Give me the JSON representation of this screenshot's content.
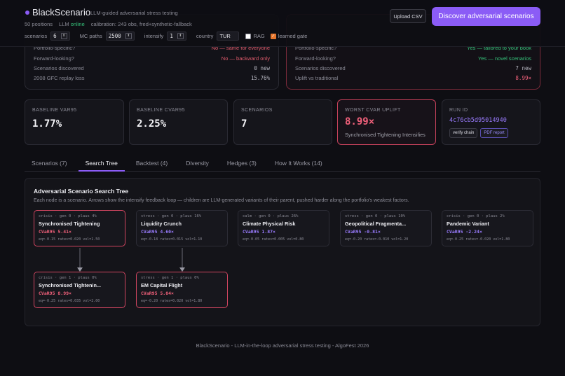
{
  "app": {
    "name": "BlackScenario",
    "tagline": "LLM-guided adversarial stress testing",
    "positions": "50 positions",
    "llm_status_prefix": "LLM",
    "llm_status": "online",
    "calibration": "calibration: 243 obs, fred+synthetic-fallback"
  },
  "controls": {
    "scenarios_label": "scenarios",
    "scenarios_value": "6",
    "mc_label": "MC paths",
    "mc_value": "2500",
    "intensify_label": "intensify",
    "intensify_value": "1",
    "country_label": "country",
    "country_value": "TUR",
    "rag_label": "RAG",
    "rag_checked": false,
    "gate_label": "learned gate",
    "gate_checked": true
  },
  "buttons": {
    "upload": "Upload CSV",
    "discover": "Discover adversarial scenarios"
  },
  "comparison": {
    "left": {
      "rows": [
        {
          "label": "Portfolio-specific?",
          "value": "No — same for everyone"
        },
        {
          "label": "Forward-looking?",
          "value": "No — backward only"
        },
        {
          "label": "Scenarios discovered",
          "value": "0 new"
        },
        {
          "label": "2008 GFC replay loss",
          "value": "15.76%"
        }
      ]
    },
    "right": {
      "rows": [
        {
          "label": "Portfolio-specific?",
          "value": "Yes — tailored to your book"
        },
        {
          "label": "Forward-looking?",
          "value": "Yes — novel scenarios"
        },
        {
          "label": "Scenarios discovered",
          "value": "7 new"
        },
        {
          "label": "Uplift vs traditional",
          "value": "8.99×"
        }
      ]
    }
  },
  "stats": {
    "var_label": "BASELINE VAR95",
    "var_value": "1.77%",
    "cvar_label": "BASELINE CVAR95",
    "cvar_value": "2.25%",
    "scen_label": "SCENARIOS",
    "scen_value": "7",
    "worst_label": "WORST CVAR UPLIFT",
    "worst_value": "8.99×",
    "worst_sub": "Synchronised Tightening Intensifies",
    "run_label": "RUN ID",
    "run_value": "4c76cb5d95014940",
    "verify_label": "verify chain",
    "pdf_label": "PDF report"
  },
  "tabs": [
    {
      "label": "Scenarios (7)"
    },
    {
      "label": "Search Tree"
    },
    {
      "label": "Backtest (4)"
    },
    {
      "label": "Diversity"
    },
    {
      "label": "Hedges (3)"
    },
    {
      "label": "How It Works (14)"
    }
  ],
  "tree": {
    "title": "Adversarial Scenario Search Tree",
    "description": "Each node is a scenario. Arrows show the intensify feedback loop — children are LLM-generated variants of their parent, pushed harder along the portfolio's weakest factors.",
    "nodes": [
      {
        "meta": "crisis · gen 0 · plaus 4%",
        "title": "Synchronised Tightening",
        "cvar": "CVaR95 5.41×",
        "factors": "eq=-0.15 rates=0.020 vol=1.50"
      },
      {
        "meta": "stress · gen 0 · plaus 16%",
        "title": "Liquidity Crunch",
        "cvar": "CVaR95 4.60×",
        "factors": "eq=-0.18 rates=0.015 vol=1.10"
      },
      {
        "meta": "calm · gen 0 · plaus 26%",
        "title": "Climate Physical Risk",
        "cvar": "CVaR95 1.87×",
        "factors": "eq=-0.05 rates=0.005 vol=0.80"
      },
      {
        "meta": "stress · gen 0 · plaus 10%",
        "title": "Geopolitical Fragmenta...",
        "cvar": "CVaR95 -0.81×",
        "factors": "eq=-0.20 rates=-0.010 vol=1.20"
      },
      {
        "meta": "crisis · gen 0 · plaus 2%",
        "title": "Pandemic Variant",
        "cvar": "CVaR95 -2.24×",
        "factors": "eq=-0.25 rates=-0.020 vol=1.80"
      },
      {
        "meta": "crisis · gen 1 · plaus 0%",
        "title": "Synchronised Tightenin...",
        "cvar": "CVaR95 8.99×",
        "factors": "eq=-0.25 rates=0.035 vol=2.00"
      },
      {
        "meta": "stress · gen 1 · plaus 0%",
        "title": "EM Capital Flight",
        "cvar": "CVaR95 5.04×",
        "factors": "eq=-0.20 rates=0.020 vol=1.80"
      }
    ]
  },
  "footer": "BlackScenario - LLM-in-the-loop adversarial stress testing - AlgoFest 2026",
  "colors": {
    "accent": "#8b5cf6",
    "danger": "#f0607a",
    "ok": "#35c27a"
  }
}
